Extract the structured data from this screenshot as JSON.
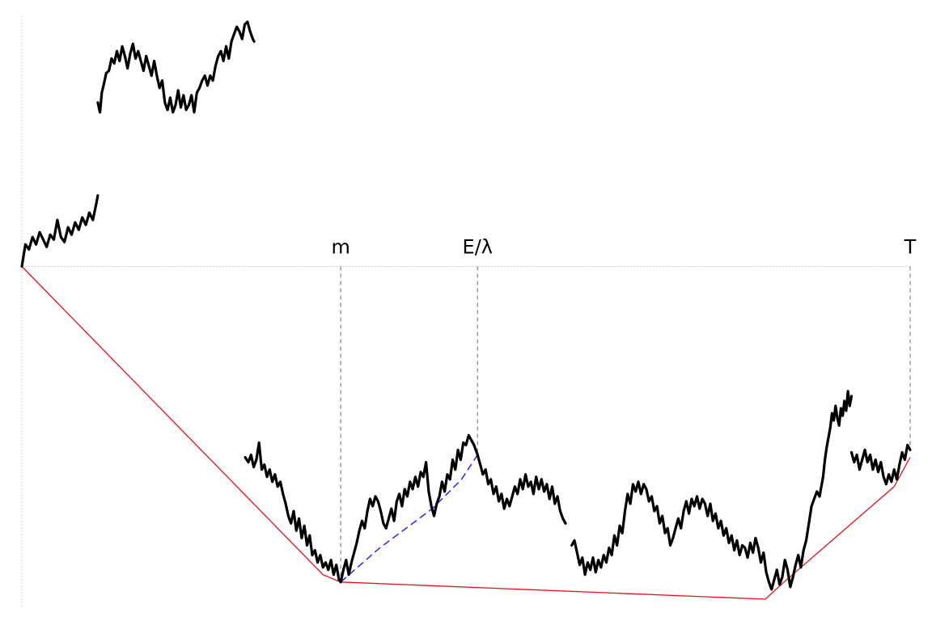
{
  "chart_data": {
    "type": "line",
    "title": "",
    "xlabel": "",
    "ylabel": "",
    "xlim": [
      0,
      1
    ],
    "ylim": [
      -1.36,
      1.0
    ],
    "grid": false,
    "legend": "none",
    "zero_line": true,
    "colors": {
      "path": "#000000",
      "hull": "#e8101e",
      "chord": "#1a1aff",
      "marker": "#888888",
      "zero": "#cccccc",
      "axis": "#d9d9d9"
    },
    "markers": [
      {
        "label": "m",
        "x": 0.359
      },
      {
        "label": "E/λ",
        "x": 0.513
      },
      {
        "label": "T",
        "x": 1.0
      }
    ],
    "series": [
      {
        "role": "path",
        "segments": [
          {
            "x": [
              0.0,
              0.004,
              0.008,
              0.012,
              0.016,
              0.02,
              0.024,
              0.028,
              0.032,
              0.036,
              0.04,
              0.044,
              0.048,
              0.052,
              0.056,
              0.06,
              0.064,
              0.068,
              0.072,
              0.076,
              0.08,
              0.084,
              0.0855
            ],
            "y": [
              0.0,
              0.09,
              0.07,
              0.12,
              0.09,
              0.14,
              0.11,
              0.08,
              0.13,
              0.11,
              0.19,
              0.12,
              0.1,
              0.16,
              0.13,
              0.18,
              0.15,
              0.2,
              0.17,
              0.22,
              0.19,
              0.26,
              0.29
            ]
          },
          {
            "x": [
              0.0855,
              0.088,
              0.09,
              0.092,
              0.095,
              0.098,
              0.101,
              0.104,
              0.107,
              0.11,
              0.113,
              0.116,
              0.119,
              0.122,
              0.125,
              0.128,
              0.131,
              0.134,
              0.137,
              0.14,
              0.143,
              0.146,
              0.149,
              0.152,
              0.155,
              0.158,
              0.161,
              0.164,
              0.167,
              0.17,
              0.173,
              0.176,
              0.179,
              0.182,
              0.185,
              0.188,
              0.191,
              0.194,
              0.197,
              0.2,
              0.203,
              0.206,
              0.209,
              0.212,
              0.215,
              0.218,
              0.221,
              0.224,
              0.227,
              0.23,
              0.233,
              0.236,
              0.239,
              0.242,
              0.245,
              0.248,
              0.251,
              0.254,
              0.257,
              0.26,
              0.2615
            ],
            "y": [
              0.67,
              0.63,
              0.71,
              0.74,
              0.79,
              0.8,
              0.85,
              0.83,
              0.88,
              0.84,
              0.9,
              0.86,
              0.81,
              0.87,
              0.91,
              0.85,
              0.88,
              0.84,
              0.8,
              0.86,
              0.82,
              0.78,
              0.84,
              0.78,
              0.73,
              0.76,
              0.67,
              0.64,
              0.69,
              0.63,
              0.66,
              0.72,
              0.65,
              0.7,
              0.64,
              0.66,
              0.7,
              0.63,
              0.71,
              0.73,
              0.76,
              0.78,
              0.74,
              0.78,
              0.76,
              0.82,
              0.86,
              0.88,
              0.84,
              0.9,
              0.85,
              0.92,
              0.95,
              0.98,
              0.96,
              0.93,
              0.99,
              1.0,
              0.96,
              0.93,
              0.92
            ]
          },
          {
            "x": [
              0.2515,
              0.255,
              0.258,
              0.261,
              0.264,
              0.267,
              0.27,
              0.273,
              0.276,
              0.279,
              0.282,
              0.285,
              0.288,
              0.291,
              0.294,
              0.297,
              0.3,
              0.303,
              0.306,
              0.309,
              0.312,
              0.315,
              0.318,
              0.321,
              0.324,
              0.327,
              0.33,
              0.333,
              0.336,
              0.339,
              0.342,
              0.345,
              0.348,
              0.351,
              0.354,
              0.357,
              0.359
            ],
            "y": [
              -0.78,
              -0.8,
              -0.77,
              -0.82,
              -0.79,
              -0.72,
              -0.83,
              -0.81,
              -0.86,
              -0.83,
              -0.88,
              -0.85,
              -0.9,
              -0.88,
              -0.93,
              -0.97,
              -1.02,
              -1.05,
              -1.0,
              -1.08,
              -1.03,
              -1.11,
              -1.06,
              -1.14,
              -1.1,
              -1.18,
              -1.16,
              -1.21,
              -1.18,
              -1.23,
              -1.21,
              -1.24,
              -1.2,
              -1.26,
              -1.22,
              -1.28,
              -1.29
            ]
          },
          {
            "x": [
              0.359,
              0.362,
              0.365,
              0.368,
              0.371,
              0.374,
              0.377,
              0.38,
              0.383,
              0.386,
              0.389,
              0.392,
              0.395,
              0.398,
              0.401,
              0.404,
              0.407,
              0.41,
              0.413,
              0.416,
              0.419,
              0.422,
              0.425,
              0.428,
              0.431,
              0.434,
              0.437,
              0.44,
              0.443,
              0.446,
              0.449,
              0.452,
              0.455,
              0.458,
              0.461,
              0.464,
              0.467,
              0.47,
              0.473,
              0.476,
              0.479,
              0.482,
              0.485,
              0.488,
              0.491,
              0.494,
              0.497,
              0.5,
              0.503,
              0.506,
              0.509,
              0.513
            ],
            "y": [
              -1.29,
              -1.24,
              -1.2,
              -1.26,
              -1.21,
              -1.17,
              -1.13,
              -1.08,
              -1.04,
              -1.07,
              -1.0,
              -0.95,
              -0.98,
              -0.94,
              -0.96,
              -1.0,
              -1.05,
              -1.07,
              -1.03,
              -0.99,
              -1.04,
              -0.96,
              -0.93,
              -0.98,
              -0.91,
              -0.94,
              -0.88,
              -0.91,
              -0.86,
              -0.9,
              -0.84,
              -0.86,
              -0.8,
              -0.92,
              -0.98,
              -1.02,
              -0.97,
              -0.94,
              -0.88,
              -0.92,
              -0.85,
              -0.87,
              -0.79,
              -0.83,
              -0.75,
              -0.79,
              -0.72,
              -0.73,
              -0.69,
              -0.71,
              -0.73,
              -0.77
            ]
          },
          {
            "x": [
              0.513,
              0.516,
              0.519,
              0.522,
              0.525,
              0.528,
              0.531,
              0.534,
              0.537,
              0.54,
              0.543,
              0.546,
              0.549,
              0.552,
              0.555,
              0.558,
              0.561,
              0.564,
              0.567,
              0.57,
              0.573,
              0.576,
              0.579,
              0.582,
              0.585,
              0.588,
              0.591,
              0.594,
              0.597,
              0.6,
              0.603,
              0.606,
              0.609,
              0.612
            ],
            "y": [
              -0.77,
              -0.81,
              -0.85,
              -0.83,
              -0.89,
              -0.87,
              -0.93,
              -0.9,
              -0.96,
              -0.93,
              -0.99,
              -0.95,
              -0.98,
              -0.94,
              -0.9,
              -0.93,
              -0.87,
              -0.91,
              -0.85,
              -0.9,
              -0.88,
              -0.93,
              -0.86,
              -0.91,
              -0.87,
              -0.92,
              -0.89,
              -0.95,
              -0.9,
              -0.97,
              -0.94,
              -1.0,
              -1.03,
              -1.05
            ]
          },
          {
            "x": [
              0.619,
              0.622,
              0.625,
              0.628,
              0.631,
              0.634,
              0.637,
              0.64,
              0.643,
              0.646,
              0.649,
              0.652,
              0.655,
              0.658,
              0.661,
              0.664,
              0.667,
              0.67,
              0.673,
              0.676,
              0.679,
              0.682,
              0.685,
              0.688,
              0.691,
              0.694,
              0.697,
              0.7,
              0.703,
              0.706,
              0.709,
              0.712,
              0.715,
              0.718,
              0.721,
              0.724,
              0.727,
              0.73,
              0.733,
              0.736,
              0.739,
              0.742,
              0.745,
              0.748,
              0.751,
              0.754,
              0.757,
              0.76,
              0.763,
              0.766,
              0.769,
              0.772,
              0.775,
              0.778,
              0.781,
              0.784,
              0.787,
              0.79,
              0.793,
              0.796,
              0.799,
              0.802,
              0.805,
              0.808,
              0.811,
              0.814,
              0.817,
              0.82,
              0.823,
              0.826,
              0.829,
              0.832,
              0.835,
              0.838,
              0.841,
              0.844,
              0.847,
              0.85,
              0.853,
              0.856,
              0.859,
              0.862,
              0.865,
              0.868,
              0.871,
              0.874,
              0.877,
              0.88,
              0.883,
              0.886,
              0.889,
              0.892,
              0.895,
              0.898
            ],
            "y": [
              -1.14,
              -1.12,
              -1.17,
              -1.22,
              -1.19,
              -1.26,
              -1.21,
              -1.24,
              -1.19,
              -1.25,
              -1.2,
              -1.23,
              -1.18,
              -1.21,
              -1.15,
              -1.18,
              -1.1,
              -1.14,
              -1.06,
              -1.09,
              -1.0,
              -0.93,
              -0.97,
              -0.89,
              -0.92,
              -0.88,
              -0.93,
              -0.89,
              -0.91,
              -0.96,
              -0.94,
              -1.0,
              -0.98,
              -1.05,
              -1.02,
              -1.09,
              -1.07,
              -1.14,
              -1.11,
              -1.07,
              -1.03,
              -1.07,
              -1.0,
              -0.96,
              -1.01,
              -0.95,
              -0.98,
              -0.94,
              -0.99,
              -0.95,
              -0.97,
              -1.02,
              -0.97,
              -1.04,
              -1.01,
              -1.07,
              -1.04,
              -1.1,
              -1.07,
              -1.13,
              -1.1,
              -1.16,
              -1.12,
              -1.18,
              -1.14,
              -1.15,
              -1.19,
              -1.13,
              -1.17,
              -1.11,
              -1.15,
              -1.21,
              -1.17,
              -1.25,
              -1.29,
              -1.32,
              -1.28,
              -1.24,
              -1.3,
              -1.27,
              -1.2,
              -1.24,
              -1.31,
              -1.27,
              -1.22,
              -1.18,
              -1.23,
              -1.16,
              -1.12,
              -1.05,
              -0.98,
              -0.95,
              -0.92,
              -0.94
            ]
          },
          {
            "x": [
              0.898,
              0.9,
              0.902,
              0.904,
              0.906,
              0.908,
              0.91,
              0.912,
              0.914,
              0.916,
              0.918,
              0.92,
              0.922,
              0.924,
              0.926,
              0.928,
              0.93,
              0.932,
              0.934
            ],
            "y": [
              -0.94,
              -0.9,
              -0.86,
              -0.79,
              -0.74,
              -0.7,
              -0.66,
              -0.6,
              -0.63,
              -0.57,
              -0.62,
              -0.65,
              -0.58,
              -0.61,
              -0.55,
              -0.59,
              -0.51,
              -0.57,
              -0.53
            ]
          },
          {
            "x": [
              0.934,
              0.937,
              0.94,
              0.943,
              0.946,
              0.949,
              0.952,
              0.955,
              0.958,
              0.961,
              0.964,
              0.967,
              0.97,
              0.973,
              0.976,
              0.979,
              0.982,
              0.985,
              0.988,
              0.991,
              0.994,
              0.997,
              1.0
            ],
            "y": [
              -0.76,
              -0.8,
              -0.77,
              -0.83,
              -0.79,
              -0.75,
              -0.8,
              -0.77,
              -0.83,
              -0.79,
              -0.84,
              -0.8,
              -0.86,
              -0.89,
              -0.85,
              -0.88,
              -0.83,
              -0.87,
              -0.81,
              -0.76,
              -0.79,
              -0.73,
              -0.75
            ]
          }
        ]
      },
      {
        "role": "hull",
        "x": [
          0.0,
          0.339,
          0.359,
          0.837,
          0.858,
          0.982,
          1.0
        ],
        "y": [
          0.0,
          -1.26,
          -1.29,
          -1.36,
          -1.29,
          -0.9,
          -0.78
        ]
      },
      {
        "role": "chord",
        "x": [
          0.359,
          0.403,
          0.462,
          0.495,
          0.513
        ],
        "y": [
          -1.29,
          -1.15,
          -0.99,
          -0.87,
          -0.77
        ]
      }
    ]
  }
}
